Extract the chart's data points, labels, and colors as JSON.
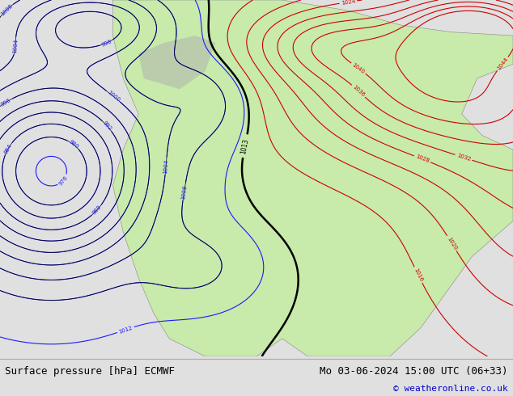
{
  "title_left": "Surface pressure [hPa] ECMWF",
  "title_right": "Mo 03-06-2024 15:00 UTC (06+33)",
  "copyright": "© weatheronline.co.uk",
  "bg_color": "#e0e0e0",
  "land_color": "#c8eaaa",
  "bottom_bar_color": "#f0f0f0",
  "fig_width": 6.34,
  "fig_height": 4.9,
  "dpi": 100,
  "title_fontsize": 9,
  "copyright_fontsize": 8
}
